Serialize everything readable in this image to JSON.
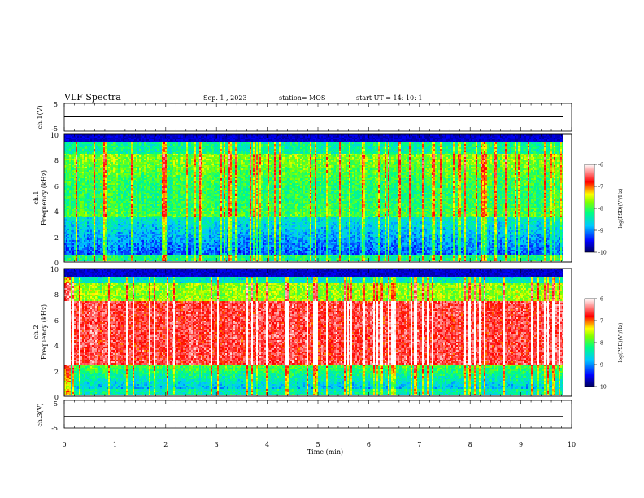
{
  "header": {
    "title": "VLF Spectra",
    "date": "Sep. 1 , 2023",
    "station": "station= MOS",
    "start": "start UT = 14: 10: 1"
  },
  "chart_data": {
    "type": "heatmap",
    "x": {
      "label": "Time (min)",
      "range": [
        0,
        10
      ],
      "ticks": [
        0,
        1,
        2,
        3,
        4,
        5,
        6,
        7,
        8,
        9,
        10
      ],
      "data_end": 9.85
    },
    "waveform_panels": [
      {
        "label": "ch.1(V)",
        "yrange": [
          -5,
          5
        ],
        "ticks": [
          5,
          -5
        ],
        "level": 0
      },
      {
        "label": "ch.3(V)",
        "yrange": [
          -5,
          5
        ],
        "ticks": [
          5,
          -5
        ],
        "level": 0
      }
    ],
    "spectrogram_panels": [
      {
        "channel_label": "ch.1",
        "ylabel": "Frequency (kHz)",
        "yrange": [
          0,
          10
        ],
        "yticks": [
          0,
          2,
          4,
          6,
          8,
          10
        ]
      },
      {
        "channel_label": "ch.2",
        "ylabel": "Frequency (kHz)",
        "yrange": [
          0,
          10
        ],
        "yticks": [
          0,
          2,
          4,
          6,
          8,
          10
        ]
      }
    ],
    "colorbar": {
      "label": "log(PSD)(V²/Hz)",
      "range": [
        -10,
        -6
      ],
      "ticks": [
        -6,
        -7,
        -8,
        -9,
        -10
      ],
      "colors": [
        "#000060",
        "#0000ff",
        "#00c8ff",
        "#00ff80",
        "#80ff00",
        "#ffff00",
        "#ff0000",
        "#ffffff"
      ]
    }
  }
}
